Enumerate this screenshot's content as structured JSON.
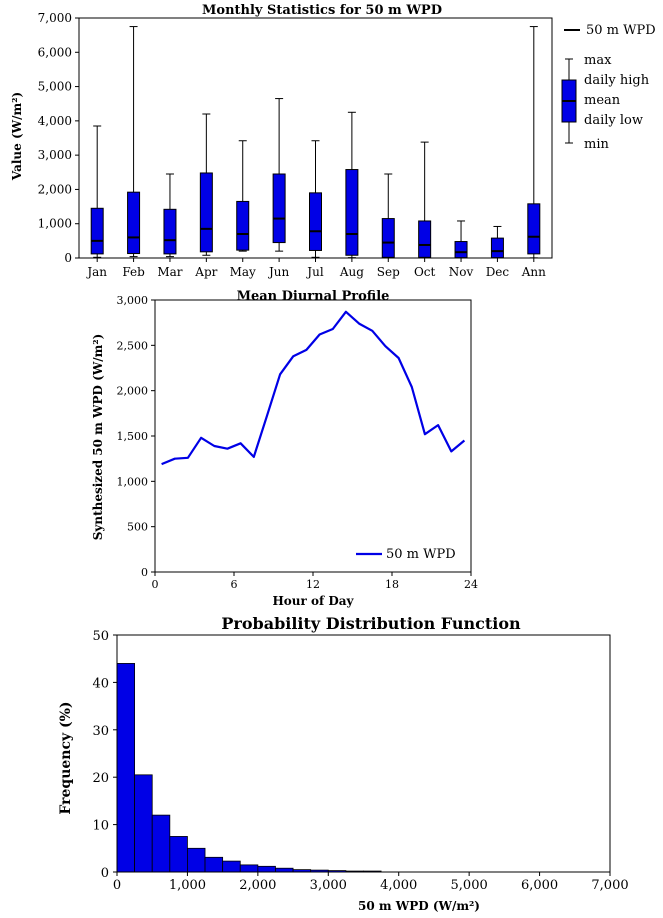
{
  "chart_data": [
    {
      "type": "box",
      "title": "Monthly Statistics for 50 m WPD",
      "xlabel": "",
      "ylabel": "Value (W/m²)",
      "ylim": [
        0,
        7000
      ],
      "yticks": [
        "0",
        "1,000",
        "2,000",
        "3,000",
        "4,000",
        "5,000",
        "6,000",
        "7,000"
      ],
      "categories": [
        "Jan",
        "Feb",
        "Mar",
        "Apr",
        "May",
        "Jun",
        "Jul",
        "Aug",
        "Sep",
        "Oct",
        "Nov",
        "Dec",
        "Ann"
      ],
      "series": [
        {
          "name": "50 m WPD",
          "max": [
            3850,
            6750,
            2450,
            4200,
            3420,
            4650,
            3420,
            4250,
            2450,
            3380,
            1080,
            920,
            6750
          ],
          "daily_high": [
            1450,
            1920,
            1420,
            2480,
            1650,
            2450,
            1900,
            2580,
            1150,
            1080,
            480,
            580,
            1580
          ],
          "mean": [
            500,
            600,
            520,
            850,
            700,
            1150,
            780,
            700,
            450,
            380,
            170,
            200,
            620
          ],
          "daily_low": [
            120,
            130,
            120,
            180,
            230,
            450,
            220,
            80,
            20,
            20,
            10,
            10,
            120
          ],
          "min": [
            20,
            40,
            40,
            80,
            200,
            200,
            20,
            10,
            10,
            10,
            5,
            5,
            5
          ]
        }
      ],
      "legend": {
        "series_label": "50 m WPD",
        "box_labels": [
          "max",
          "daily high",
          "mean",
          "daily low",
          "min"
        ],
        "position": "right"
      },
      "colors": {
        "box_fill": "#0000e6",
        "box_edge": "#000000"
      }
    },
    {
      "type": "line",
      "title": "Mean Diurnal Profile",
      "xlabel": "Hour of Day",
      "ylabel": "Synthesized 50 m WPD (W/m²)",
      "xlim": [
        0,
        24
      ],
      "ylim": [
        0,
        3000
      ],
      "xticks": [
        "0",
        "6",
        "12",
        "18",
        "24"
      ],
      "yticks": [
        "0",
        "500",
        "1,000",
        "1,500",
        "2,000",
        "2,500",
        "3,000"
      ],
      "series": [
        {
          "name": "50 m WPD",
          "x": [
            0.5,
            1.5,
            2.5,
            3.5,
            4.5,
            5.5,
            6.5,
            7.5,
            8.5,
            9.5,
            10.5,
            11.5,
            12.5,
            13.5,
            14.5,
            15.5,
            16.5,
            17.5,
            18.5,
            19.5,
            20.5,
            21.5,
            22.5,
            23.5
          ],
          "y": [
            1190,
            1250,
            1260,
            1480,
            1390,
            1360,
            1420,
            1270,
            1720,
            2180,
            2380,
            2450,
            2620,
            2680,
            2870,
            2740,
            2660,
            2490,
            2360,
            2040,
            1520,
            1620,
            1330,
            1450
          ]
        }
      ],
      "legend": {
        "position": "bottom-right"
      },
      "colors": {
        "line": "#0000e6"
      }
    },
    {
      "type": "histogram",
      "title": "Probability Distribution Function",
      "xlabel": "50 m WPD (W/m²)",
      "ylabel": "Frequency (%)",
      "xlim": [
        0,
        7000
      ],
      "ylim": [
        0,
        50
      ],
      "xticks": [
        "0",
        "1,000",
        "2,000",
        "3,000",
        "4,000",
        "5,000",
        "6,000",
        "7,000"
      ],
      "yticks": [
        "0",
        "10",
        "20",
        "30",
        "40",
        "50"
      ],
      "bin_width": 250,
      "bin_starts": [
        0,
        250,
        500,
        750,
        1000,
        1250,
        1500,
        1750,
        2000,
        2250,
        2500,
        2750,
        3000,
        3250,
        3500
      ],
      "values": [
        44,
        20.5,
        12,
        7.5,
        5,
        3.1,
        2.3,
        1.5,
        1.2,
        0.8,
        0.5,
        0.4,
        0.3,
        0.2,
        0.2
      ],
      "colors": {
        "bar": "#0000e6"
      }
    }
  ]
}
